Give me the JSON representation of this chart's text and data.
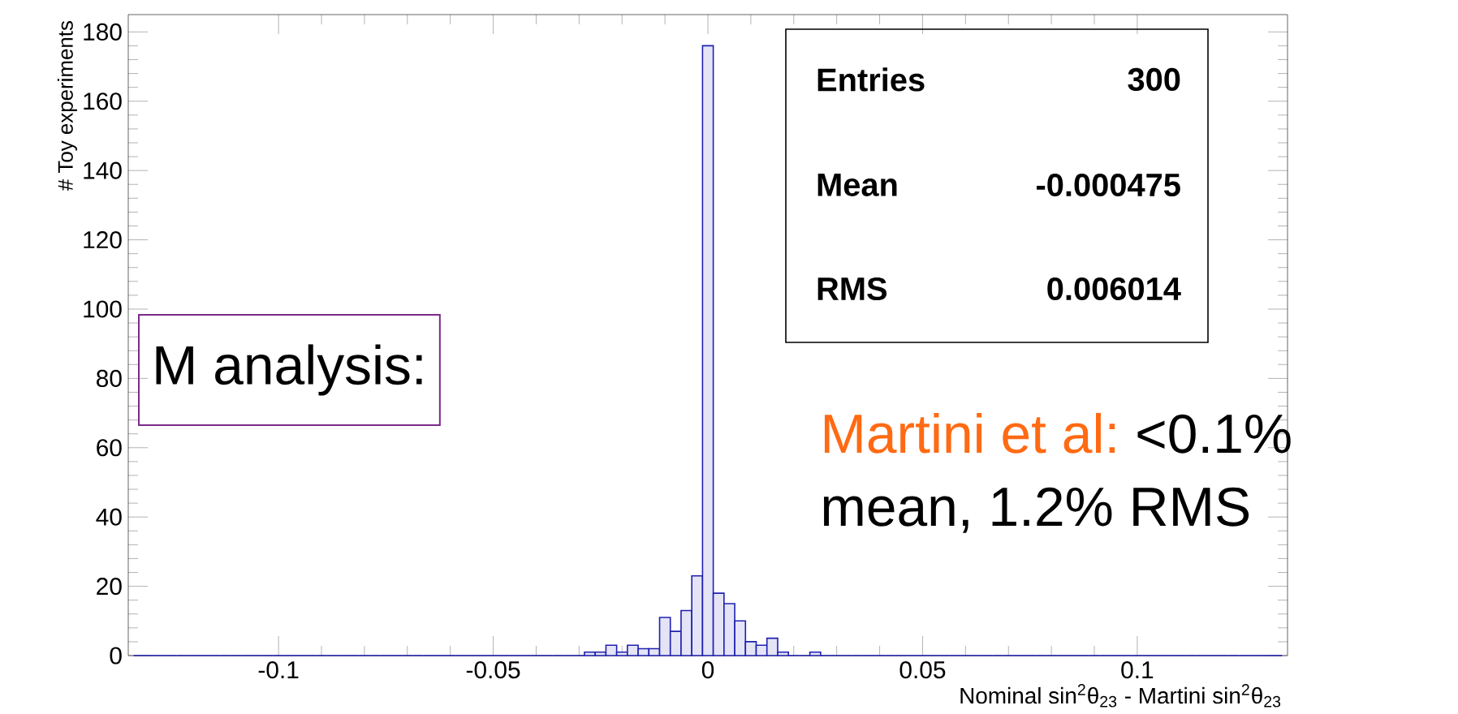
{
  "chart_data": {
    "type": "histogram",
    "xlabel": "Nominal sin$^{2}$θ$_{23}$ - Martini sin$^{2}$θ$_{23}$",
    "ylabel": "# Toy experiments",
    "bins": [
      -0.13375,
      -0.13125,
      -0.12875,
      -0.12625,
      -0.12375,
      -0.12125,
      -0.11875,
      -0.11625,
      -0.11375,
      -0.11125,
      -0.10875,
      -0.10625,
      -0.10375,
      -0.10125,
      -0.09875,
      -0.09625,
      -0.09375,
      -0.09125,
      -0.08875,
      -0.08625,
      -0.08375,
      -0.08125,
      -0.07875,
      -0.07625,
      -0.07375,
      -0.07125,
      -0.06875,
      -0.06625,
      -0.06375,
      -0.06125,
      -0.05875,
      -0.05625,
      -0.05375,
      -0.05125,
      -0.04875,
      -0.04625,
      -0.04375,
      -0.04125,
      -0.03875,
      -0.03625,
      -0.03375,
      -0.03125,
      -0.02875,
      -0.02625,
      -0.02375,
      -0.02125,
      -0.01875,
      -0.01625,
      -0.01375,
      -0.01125,
      -0.00875,
      -0.00625,
      -0.00375,
      -0.00125,
      0.00125,
      0.00375,
      0.00625,
      0.00875,
      0.01125,
      0.01375,
      0.01625,
      0.01875,
      0.02125,
      0.02375,
      0.02625,
      0.02875,
      0.03125,
      0.03375,
      0.03625,
      0.03875,
      0.04125,
      0.04375,
      0.04625,
      0.04875,
      0.05125,
      0.05375,
      0.05625,
      0.05875,
      0.06125,
      0.06375,
      0.06625,
      0.06875,
      0.07125,
      0.07375,
      0.07625,
      0.07875,
      0.08125,
      0.08375,
      0.08625,
      0.08875,
      0.09125,
      0.09375,
      0.09625,
      0.09875,
      0.10125,
      0.10375,
      0.10625,
      0.10875,
      0.11125,
      0.11375,
      0.11625,
      0.11875,
      0.12125,
      0.12375,
      0.12625,
      0.12875,
      0.13125,
      0.13375
    ],
    "values": [
      0,
      0,
      0,
      0,
      0,
      0,
      0,
      0,
      0,
      0,
      0,
      0,
      0,
      0,
      0,
      0,
      0,
      0,
      0,
      0,
      0,
      0,
      0,
      0,
      0,
      0,
      0,
      0,
      0,
      0,
      0,
      0,
      0,
      0,
      0,
      0,
      0,
      0,
      0,
      0,
      0,
      0,
      1,
      1,
      3,
      1,
      3,
      2,
      2,
      11,
      7,
      13,
      23,
      176,
      18,
      15,
      10,
      4,
      3,
      5,
      1,
      0,
      0,
      1,
      0,
      0,
      0,
      0,
      0,
      0,
      0,
      0,
      0,
      0,
      0,
      0,
      0,
      0,
      0,
      0,
      0,
      0,
      0,
      0,
      0,
      0,
      0,
      0,
      0,
      0,
      0,
      0,
      0,
      0,
      0,
      0,
      0,
      0,
      0,
      0,
      0,
      0,
      0,
      0,
      0,
      0,
      0
    ],
    "color": "#2020b0",
    "xlim": [
      -0.135,
      0.135
    ],
    "ylim": [
      0,
      185
    ],
    "xticks": [
      -0.1,
      -0.05,
      0,
      0.05,
      0.1
    ],
    "yticks": [
      0,
      20,
      40,
      60,
      80,
      100,
      120,
      140,
      160,
      180
    ],
    "annotations": [
      "Entries",
      "300",
      "Mean",
      "-0.000475",
      "RMS",
      "0.006014",
      "M analysis:",
      "Martini et al:",
      "<0.1%",
      "mean, 1.2% RMS"
    ]
  }
}
